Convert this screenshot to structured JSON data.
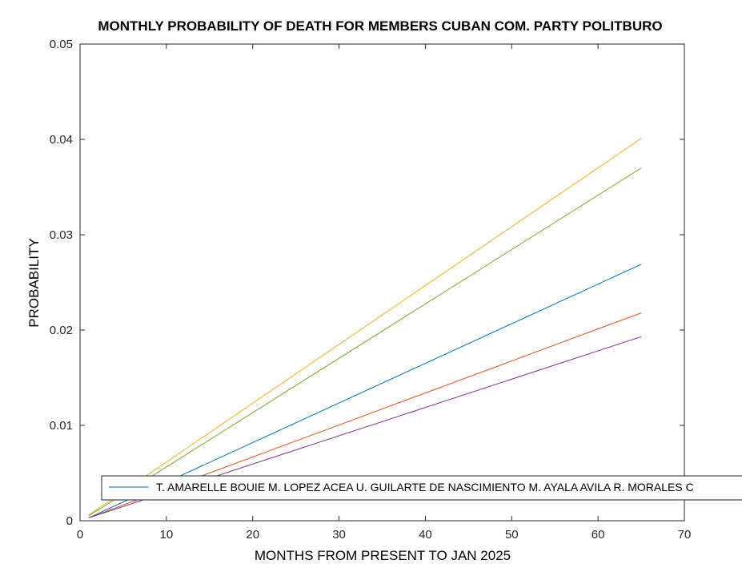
{
  "chart_data": {
    "type": "line",
    "title": "MONTHLY PROBABILITY OF DEATH FOR MEMBERS CUBAN COM. PARTY POLITBURO",
    "xlabel": "MONTHS FROM PRESENT TO JAN 2025",
    "ylabel": "PROBABILITY",
    "xlim": [
      0,
      70
    ],
    "ylim": [
      0,
      0.05
    ],
    "xticks": [
      0,
      10,
      20,
      30,
      40,
      50,
      60,
      70
    ],
    "xtick_labels": [
      "0",
      "10",
      "20",
      "30",
      "40",
      "50",
      "60",
      "70"
    ],
    "yticks": [
      0,
      0.01,
      0.02,
      0.03,
      0.04,
      0.05
    ],
    "ytick_labels": [
      "0",
      "0.01",
      "0.02",
      "0.03",
      "0.04",
      "0.05"
    ],
    "legend_text": "T. AMARELLE BOUIE  M. LOPEZ ACEA U. GUILARTE DE NASCIMIENTO M. AYALA AVILA R. MORALES C",
    "legend_placement": "bottom, overflowing right edge",
    "grid": false,
    "series": [
      {
        "color": "#0072BD",
        "x": [
          1,
          65
        ],
        "y": [
          0.0003,
          0.0269
        ]
      },
      {
        "color": "#D95319",
        "x": [
          1,
          65
        ],
        "y": [
          0.0003,
          0.0218
        ]
      },
      {
        "color": "#EDB120",
        "x": [
          1,
          65
        ],
        "y": [
          0.0006,
          0.0401
        ]
      },
      {
        "color": "#7E2F8E",
        "x": [
          1,
          65
        ],
        "y": [
          0.0003,
          0.0193
        ]
      },
      {
        "color": "#77AC30",
        "x": [
          1,
          65
        ],
        "y": [
          0.0005,
          0.037
        ]
      }
    ]
  }
}
